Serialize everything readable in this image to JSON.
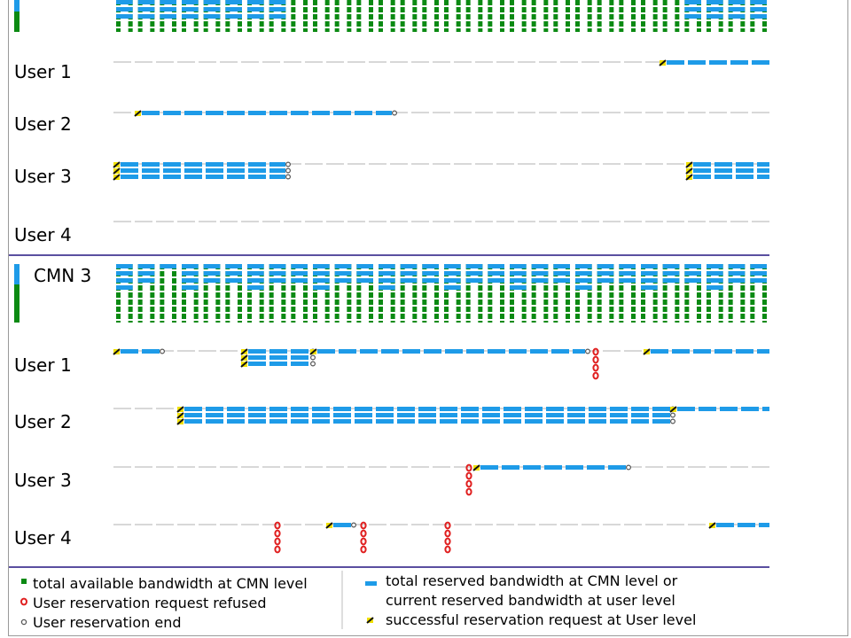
{
  "colors": {
    "available": "#0b8a13",
    "reserved": "#1e9be8",
    "refused": "#e02020",
    "end": "#555555",
    "success_yellow": "#f0e000",
    "success_black": "#111111",
    "baseline": "#cccccc",
    "separator": "#5a4fa0"
  },
  "sections": [
    {
      "name": "",
      "cmn": {
        "columns": 30,
        "top": 0,
        "height": 36,
        "clipped_top": true,
        "reserved_runs": [
          [
            1,
            8,
            3
          ],
          [
            27,
            30,
            3
          ]
        ]
      },
      "users": [
        {
          "label": "User 1",
          "reservations": [
            {
              "start": 744,
              "end": 868,
              "rows": 1,
              "success": true,
              "end_marker": false
            }
          ],
          "refused": []
        },
        {
          "label": "User 2",
          "reservations": [
            {
              "start": 152,
              "end": 442,
              "rows": 1,
              "success": true,
              "end_marker": true
            }
          ],
          "refused": []
        },
        {
          "label": "User 3",
          "reservations": [
            {
              "start": 128,
              "end": 322,
              "rows": 3,
              "success": true,
              "end_marker": true
            },
            {
              "start": 774,
              "end": 868,
              "rows": 3,
              "success": true,
              "end_marker": false
            }
          ],
          "refused": []
        },
        {
          "label": "User 4",
          "reservations": [],
          "refused": []
        }
      ]
    },
    {
      "name": "CMN 3",
      "cmn": {
        "columns": 30,
        "top": 298,
        "height": 66,
        "clipped_top": false
      },
      "users": [
        {
          "label": "User 1",
          "reservations": [
            {
              "start": 128,
              "end": 180,
              "rows": 1,
              "success": true,
              "end_marker": true
            },
            {
              "start": 272,
              "end": 350,
              "rows": 3,
              "success": true,
              "end_marker": true
            },
            {
              "start": 350,
              "end": 660,
              "rows": 1,
              "success": true,
              "end_marker": true
            },
            {
              "start": 726,
              "end": 868,
              "rows": 1,
              "success": true,
              "end_marker": false
            }
          ],
          "refused": [
            672
          ]
        },
        {
          "label": "User 2",
          "reservations": [
            {
              "start": 200,
              "end": 756,
              "rows": 3,
              "success": true,
              "end_marker": true
            },
            {
              "start": 756,
              "end": 868,
              "rows": 1,
              "success": true,
              "end_marker": false
            }
          ],
          "refused": []
        },
        {
          "label": "User 3",
          "reservations": [
            {
              "start": 534,
              "end": 706,
              "rows": 1,
              "success": true,
              "end_marker": true
            }
          ],
          "refused": [
            529
          ]
        },
        {
          "label": "User 4",
          "reservations": [
            {
              "start": 368,
              "end": 396,
              "rows": 1,
              "success": true,
              "end_marker": true
            },
            {
              "start": 800,
              "end": 868,
              "rows": 1,
              "success": true,
              "end_marker": false
            }
          ],
          "refused": [
            313,
            410,
            505
          ]
        }
      ]
    }
  ],
  "legend": {
    "left": [
      {
        "icon": "available",
        "text": "total available bandwidth at CMN level"
      },
      {
        "icon": "refused",
        "text": "User reservation request refused"
      },
      {
        "icon": "end",
        "text": "User reservation end"
      }
    ],
    "right": [
      {
        "icon": "reserved",
        "text": "total reserved bandwidth at CMN level or"
      },
      {
        "icon": "none",
        "text": "current reserved bandwidth at user level"
      },
      {
        "icon": "success",
        "text": "successful reservation request at User level"
      }
    ]
  }
}
